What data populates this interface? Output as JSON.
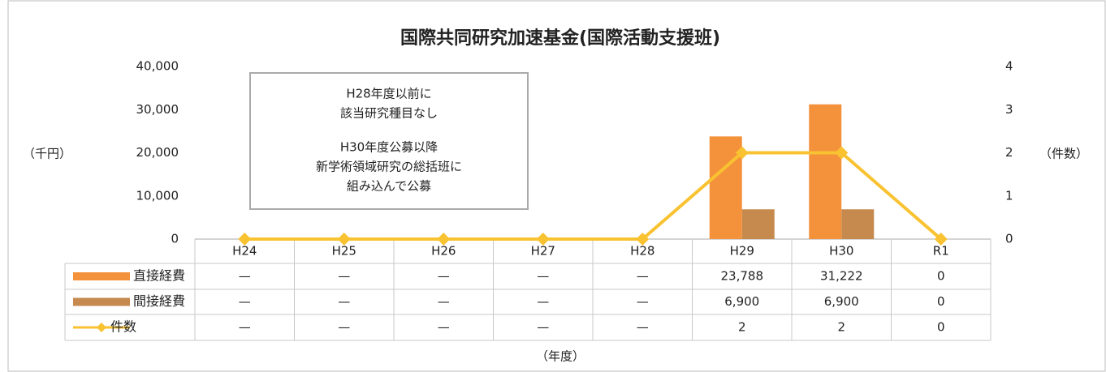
{
  "chart_data": {
    "type": "bar-line",
    "title": "国際共同研究加速基金(国際活動支援班)",
    "categories": [
      "H24",
      "H25",
      "H26",
      "H27",
      "H28",
      "H29",
      "H30",
      "R1"
    ],
    "series": [
      {
        "name": "直接経費",
        "type": "bar",
        "color": "#f4913b",
        "values": [
          null,
          null,
          null,
          null,
          null,
          23788,
          31222,
          0
        ],
        "value_labels": [
          "—",
          "—",
          "—",
          "—",
          "—",
          "23,788",
          "31,222",
          "0"
        ]
      },
      {
        "name": "間接経費",
        "type": "bar",
        "color": "#c68a4e",
        "values": [
          null,
          null,
          null,
          null,
          null,
          6900,
          6900,
          0
        ],
        "value_labels": [
          "—",
          "—",
          "—",
          "—",
          "—",
          "6,900",
          "6,900",
          "0"
        ]
      },
      {
        "name": "件数",
        "type": "line",
        "axis": "y2",
        "color": "#f9c231",
        "values": [
          0,
          0,
          0,
          0,
          0,
          2,
          2,
          0
        ],
        "value_labels": [
          "—",
          "—",
          "—",
          "—",
          "—",
          "2",
          "2",
          "0"
        ]
      }
    ],
    "ylim": [
      0,
      40000
    ],
    "yticks": [
      0,
      {
        "value": 10000,
        "label": "10,000"
      },
      {
        "value": 20000,
        "label": "20,000"
      },
      {
        "value": 30000,
        "label": "30,000"
      },
      {
        "value": 40000,
        "label": "40,000"
      }
    ],
    "y2lim": [
      0,
      4
    ],
    "y2ticks": [
      0,
      1,
      2,
      3,
      4
    ],
    "y_label": "（千円）",
    "y2_label": "（件数）",
    "x_label": "（年度）",
    "annotation": [
      "H28年度以前に",
      "該当研究種目なし",
      "H30年度公募以降",
      "新学術領域研究の総括班に",
      "組み込んで公募"
    ]
  }
}
